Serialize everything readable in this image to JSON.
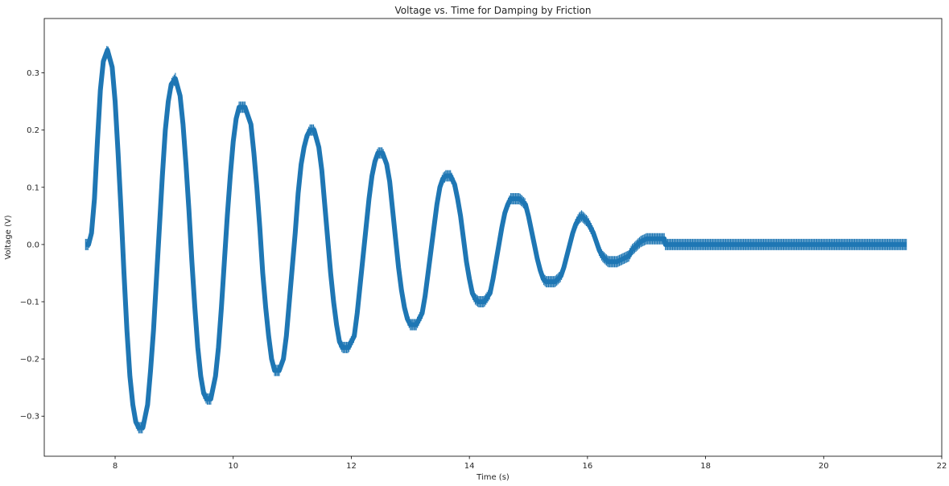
{
  "chart_data": {
    "type": "line",
    "title": "Voltage vs. Time for Damping by Friction",
    "xlabel": "Time (s)",
    "ylabel": "Voltage (V)",
    "xlim": [
      6.8,
      22.0
    ],
    "ylim": [
      -0.37,
      0.395
    ],
    "xticks": [
      8,
      10,
      12,
      14,
      16,
      18,
      20,
      22
    ],
    "xtick_labels": [
      "8",
      "10",
      "12",
      "14",
      "16",
      "18",
      "20",
      "22"
    ],
    "yticks": [
      -0.3,
      -0.2,
      -0.1,
      0.0,
      0.1,
      0.2,
      0.3
    ],
    "ytick_labels": [
      "−0.3",
      "−0.2",
      "−0.1",
      "0.0",
      "0.1",
      "0.2",
      "0.3"
    ],
    "grid": false,
    "legend": "none",
    "series": [
      {
        "color": "#1f77b4",
        "x": [
          7.5,
          7.55,
          7.6,
          7.65,
          7.7,
          7.75,
          7.8,
          7.87,
          7.95,
          8.0,
          8.05,
          8.1,
          8.15,
          8.2,
          8.25,
          8.3,
          8.35,
          8.4,
          8.47,
          8.55,
          8.6,
          8.65,
          8.7,
          8.75,
          8.8,
          8.85,
          8.9,
          8.95,
          9.02,
          9.1,
          9.15,
          9.2,
          9.25,
          9.3,
          9.35,
          9.4,
          9.45,
          9.5,
          9.55,
          9.62,
          9.7,
          9.75,
          9.8,
          9.85,
          9.9,
          9.95,
          10.0,
          10.05,
          10.1,
          10.2,
          10.3,
          10.35,
          10.4,
          10.45,
          10.5,
          10.55,
          10.6,
          10.65,
          10.7,
          10.78,
          10.85,
          10.9,
          10.95,
          11.0,
          11.05,
          11.1,
          11.15,
          11.2,
          11.25,
          11.3,
          11.37,
          11.45,
          11.5,
          11.55,
          11.6,
          11.65,
          11.7,
          11.75,
          11.8,
          11.85,
          11.95,
          12.05,
          12.1,
          12.15,
          12.2,
          12.25,
          12.3,
          12.35,
          12.4,
          12.45,
          12.53,
          12.6,
          12.65,
          12.7,
          12.75,
          12.8,
          12.85,
          12.9,
          12.95,
          13.0,
          13.1,
          13.2,
          13.25,
          13.3,
          13.35,
          13.4,
          13.45,
          13.5,
          13.55,
          13.6,
          13.68,
          13.75,
          13.8,
          13.85,
          13.9,
          13.95,
          14.0,
          14.05,
          14.1,
          14.15,
          14.25,
          14.35,
          14.4,
          14.45,
          14.5,
          14.55,
          14.6,
          14.65,
          14.7,
          14.75,
          14.85,
          14.95,
          15.0,
          15.05,
          15.1,
          15.15,
          15.2,
          15.25,
          15.3,
          15.35,
          15.45,
          15.55,
          15.6,
          15.65,
          15.7,
          15.75,
          15.8,
          15.85,
          15.9,
          15.95,
          16.0,
          16.05,
          16.1,
          16.15,
          16.2,
          16.25,
          16.3,
          16.35,
          16.4,
          16.45,
          16.5,
          16.6,
          16.7,
          16.75,
          16.8,
          16.85,
          16.9,
          17.0,
          17.1,
          17.2,
          17.3,
          17.32,
          17.4,
          18.0,
          19.0,
          20.0,
          21.0,
          21.4
        ],
        "y": [
          0.0,
          0.0,
          0.02,
          0.08,
          0.18,
          0.27,
          0.32,
          0.34,
          0.31,
          0.25,
          0.16,
          0.06,
          -0.05,
          -0.15,
          -0.23,
          -0.28,
          -0.31,
          -0.32,
          -0.32,
          -0.28,
          -0.22,
          -0.15,
          -0.06,
          0.03,
          0.12,
          0.2,
          0.25,
          0.28,
          0.29,
          0.26,
          0.21,
          0.14,
          0.06,
          -0.03,
          -0.11,
          -0.18,
          -0.23,
          -0.26,
          -0.27,
          -0.27,
          -0.23,
          -0.18,
          -0.11,
          -0.03,
          0.05,
          0.12,
          0.18,
          0.22,
          0.24,
          0.24,
          0.21,
          0.16,
          0.1,
          0.03,
          -0.05,
          -0.11,
          -0.16,
          -0.2,
          -0.22,
          -0.22,
          -0.2,
          -0.16,
          -0.1,
          -0.04,
          0.02,
          0.09,
          0.14,
          0.17,
          0.19,
          0.2,
          0.2,
          0.17,
          0.13,
          0.07,
          0.01,
          -0.05,
          -0.1,
          -0.14,
          -0.17,
          -0.18,
          -0.18,
          -0.16,
          -0.12,
          -0.07,
          -0.02,
          0.03,
          0.08,
          0.12,
          0.145,
          0.16,
          0.16,
          0.14,
          0.11,
          0.06,
          0.01,
          -0.04,
          -0.08,
          -0.11,
          -0.13,
          -0.14,
          -0.14,
          -0.12,
          -0.09,
          -0.05,
          -0.01,
          0.03,
          0.07,
          0.1,
          0.115,
          0.12,
          0.12,
          0.105,
          0.08,
          0.05,
          0.01,
          -0.03,
          -0.06,
          -0.085,
          -0.095,
          -0.1,
          -0.1,
          -0.085,
          -0.06,
          -0.03,
          0.0,
          0.03,
          0.055,
          0.07,
          0.08,
          0.08,
          0.08,
          0.07,
          0.05,
          0.025,
          0.0,
          -0.025,
          -0.045,
          -0.06,
          -0.065,
          -0.065,
          -0.065,
          -0.055,
          -0.04,
          -0.02,
          0.0,
          0.02,
          0.035,
          0.045,
          0.05,
          0.045,
          0.04,
          0.03,
          0.02,
          0.005,
          -0.01,
          -0.02,
          -0.025,
          -0.03,
          -0.03,
          -0.03,
          -0.03,
          -0.025,
          -0.02,
          -0.01,
          -0.005,
          0.0,
          0.005,
          0.01,
          0.01,
          0.01,
          0.01,
          0.0,
          0.0,
          0.0,
          0.0,
          0.0,
          0.0,
          0.0
        ]
      }
    ]
  }
}
